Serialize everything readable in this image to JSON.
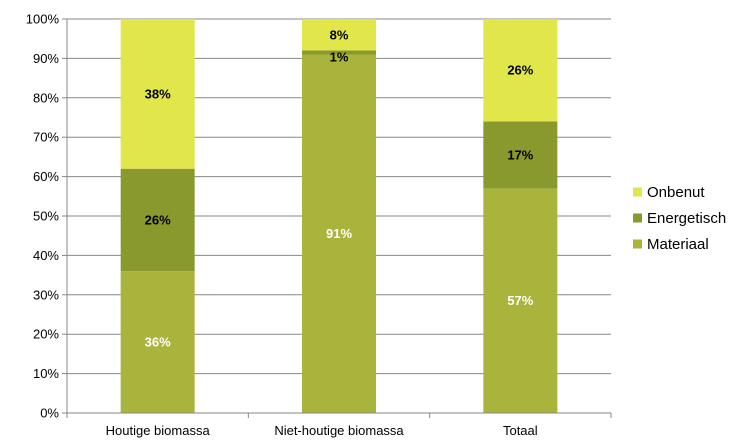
{
  "chart_data": {
    "type": "bar",
    "stacked": true,
    "normalized": true,
    "categories": [
      "Houtige biomassa",
      "Niet-houtige biomassa",
      "Totaal"
    ],
    "series": [
      {
        "name": "Materiaal",
        "values": [
          36,
          91,
          57
        ],
        "labels": [
          "36%",
          "91%",
          "57%"
        ],
        "color": "#a9b43c",
        "label_color": "#ffffff"
      },
      {
        "name": "Energetisch",
        "values": [
          26,
          1,
          17
        ],
        "labels": [
          "26%",
          "1%",
          "17%"
        ],
        "color": "#89992e",
        "label_color": "#000000"
      },
      {
        "name": "Onbenut",
        "values": [
          38,
          8,
          26
        ],
        "labels": [
          "38%",
          "8%",
          "26%"
        ],
        "color": "#e1e64a",
        "label_color": "#000000"
      }
    ],
    "y_ticks": [
      "0%",
      "10%",
      "20%",
      "30%",
      "40%",
      "50%",
      "60%",
      "70%",
      "80%",
      "90%",
      "100%"
    ],
    "ylim": [
      0,
      100
    ],
    "grid": true,
    "legend_position": "right",
    "legend_order": [
      "Onbenut",
      "Energetisch",
      "Materiaal"
    ],
    "title": "",
    "xlabel": "",
    "ylabel": "",
    "colors": {
      "grid": "#878787",
      "axis": "#878787"
    }
  }
}
